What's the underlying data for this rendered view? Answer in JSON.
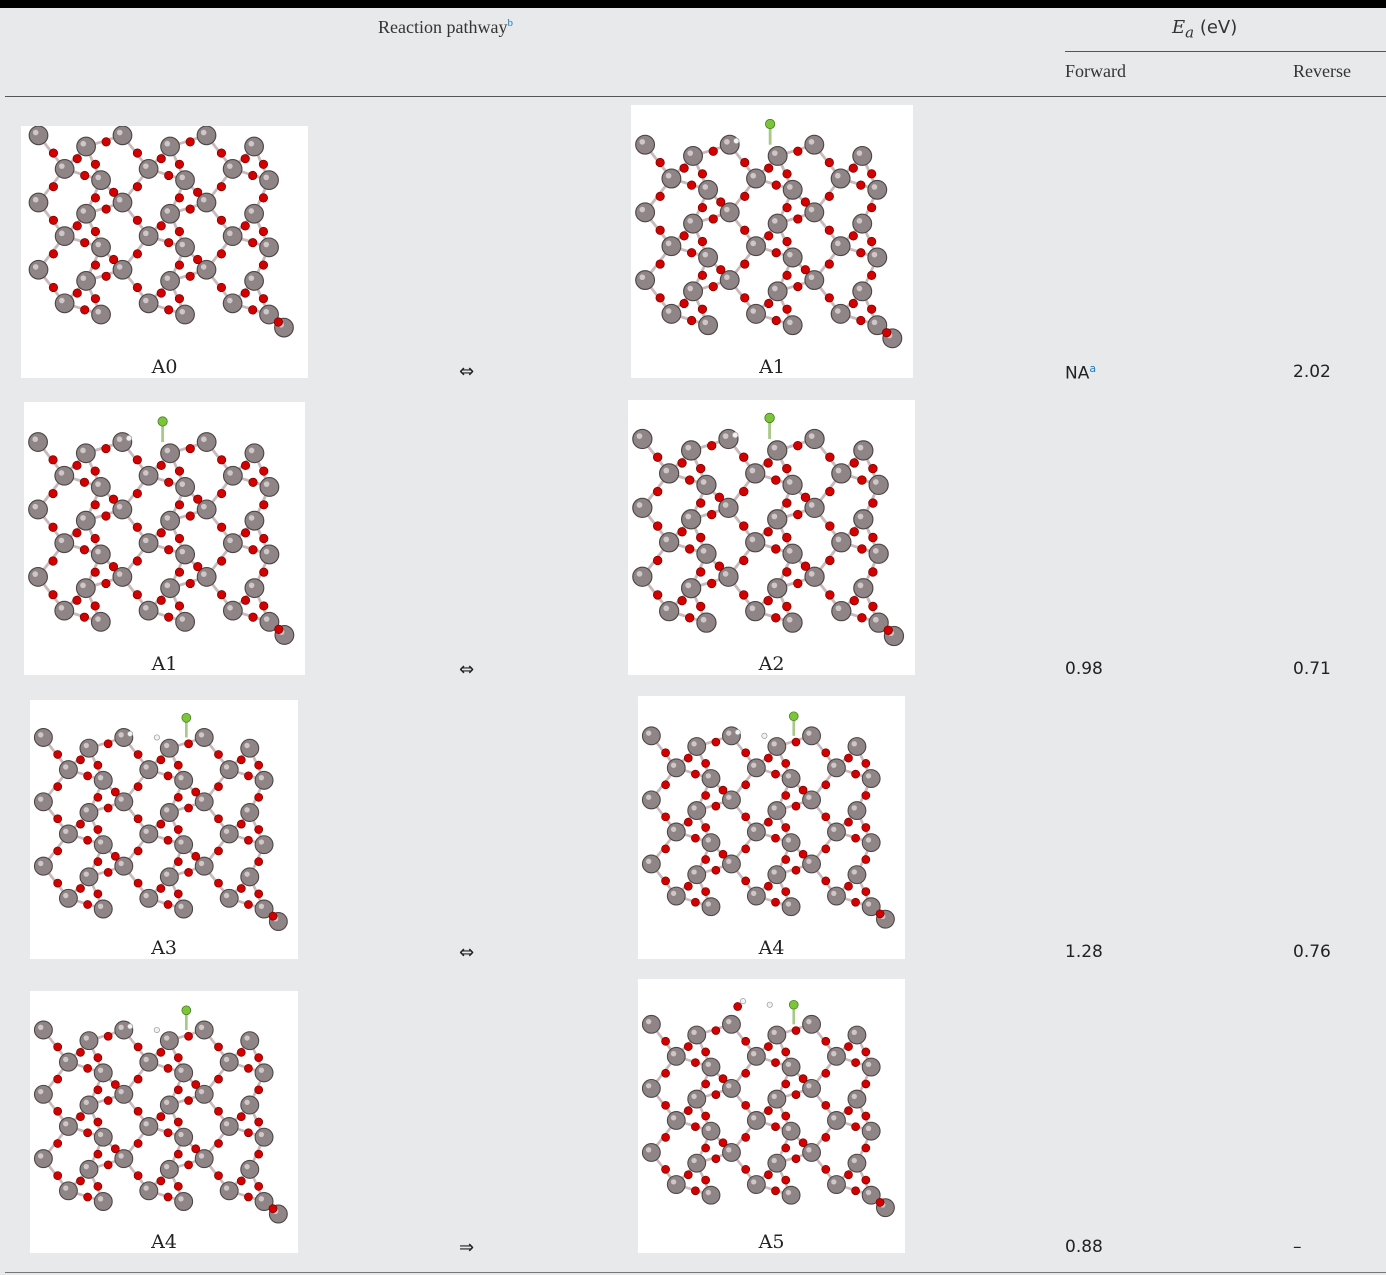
{
  "table": {
    "header": {
      "pathway_label": "Reaction pathway",
      "pathway_footnote": "b",
      "ea_symbol": "E",
      "ea_subscript": "a",
      "ea_unit": "(eV)",
      "forward": "Forward",
      "reverse": "Reverse"
    },
    "rows": [
      {
        "left_label": "A0",
        "arrow": "⇔",
        "right_label": "A1",
        "forward": "NA",
        "forward_footnote": "a",
        "reverse": "2.02"
      },
      {
        "left_label": "A1",
        "arrow": "⇔",
        "right_label": "A2",
        "forward": "0.98",
        "forward_footnote": "",
        "reverse": "0.71"
      },
      {
        "left_label": "A3",
        "arrow": "⇔",
        "right_label": "A4",
        "forward": "1.28",
        "forward_footnote": "",
        "reverse": "0.76"
      },
      {
        "left_label": "A4",
        "arrow": "⇒",
        "right_label": "A5",
        "forward": "0.88",
        "forward_footnote": "",
        "reverse": "–"
      }
    ]
  },
  "colors": {
    "background": "#e8e9eb",
    "metal_atom": "#8f8586",
    "oxygen_atom": "#d40000",
    "fluorine_atom": "#7cc43a",
    "hydrogen_atom": "#f2f2f2",
    "footnote_link": "#1a7fc1"
  }
}
